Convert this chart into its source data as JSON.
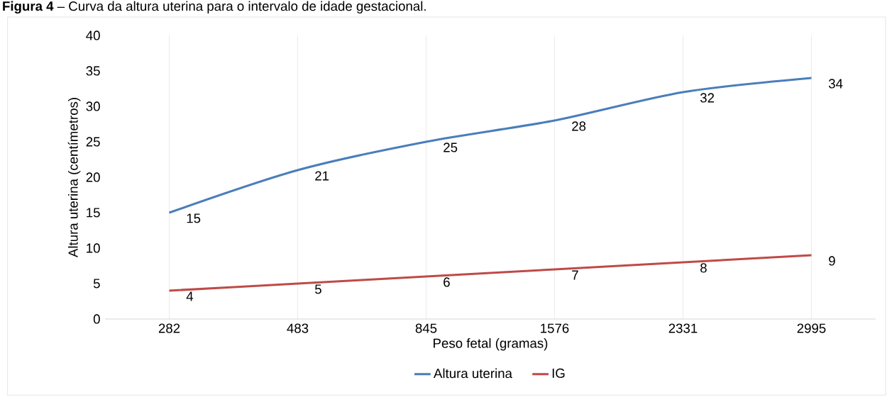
{
  "chart_data": {
    "type": "line",
    "title": "**Figura 4** – Curva da altura uterina para o intervalo de idade gestacional.",
    "xlabel": "Peso fetal (gramas)",
    "ylabel": "Altura uterina (centímetros)",
    "categories": [
      "282",
      "483",
      "845",
      "1576",
      "2331",
      "2995"
    ],
    "series": [
      {
        "name": "Altura uterina",
        "color": "#4a7ebb",
        "values": [
          15,
          21,
          25,
          28,
          32,
          34
        ]
      },
      {
        "name": "IG",
        "color": "#be4b48",
        "values": [
          4,
          5,
          6,
          7,
          8,
          9
        ]
      }
    ],
    "ylim": [
      0,
      40
    ],
    "yticks": [
      0,
      5,
      10,
      15,
      20,
      25,
      30,
      35,
      40
    ],
    "grid": "x",
    "legend": "bottom",
    "data_labels": true,
    "marker": "none",
    "line_style": "solid"
  }
}
